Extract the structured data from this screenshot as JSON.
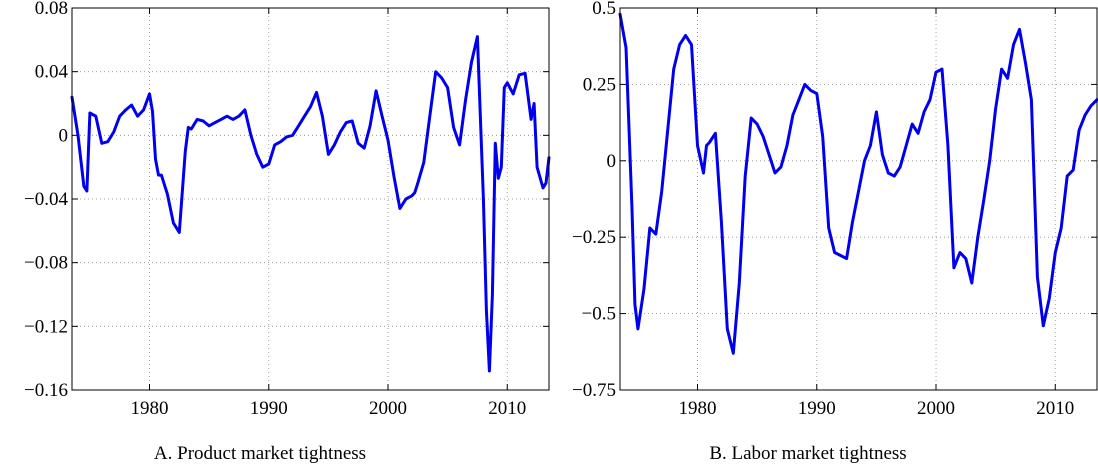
{
  "chart_data": [
    {
      "type": "line",
      "title": "A. Product market tightness",
      "xlim": [
        1973.5,
        2013.5
      ],
      "ylim": [
        -0.16,
        0.08
      ],
      "x_ticks": [
        1980,
        1990,
        2000,
        2010
      ],
      "x_tick_labels": [
        "1980",
        "1990",
        "2000",
        "2010"
      ],
      "y_ticks": [
        0.08,
        0.04,
        0,
        -0.04,
        -0.08,
        -0.12,
        -0.16
      ],
      "y_tick_labels": [
        "0.08",
        "0.04",
        "0",
        "−0.04",
        "−0.08",
        "−0.12",
        "−0.16"
      ],
      "grid": true,
      "series": [
        {
          "color": "#0000ee",
          "x": [
            1973.5,
            1974.0,
            1974.5,
            1974.75,
            1975.0,
            1975.5,
            1976.0,
            1976.5,
            1977.0,
            1977.5,
            1978.0,
            1978.5,
            1979.0,
            1979.5,
            1980.0,
            1980.25,
            1980.5,
            1980.75,
            1981.0,
            1981.5,
            1982.0,
            1982.5,
            1983.0,
            1983.25,
            1983.5,
            1984.0,
            1984.5,
            1985.0,
            1985.5,
            1986.0,
            1986.5,
            1987.0,
            1987.5,
            1988.0,
            1988.5,
            1989.0,
            1989.5,
            1990.0,
            1990.5,
            1991.0,
            1991.5,
            1992.0,
            1992.5,
            1993.0,
            1993.5,
            1994.0,
            1994.5,
            1995.0,
            1995.5,
            1996.0,
            1996.5,
            1997.0,
            1997.5,
            1998.0,
            1998.5,
            1999.0,
            1999.5,
            2000.0,
            2000.5,
            2001.0,
            2001.5,
            2002.0,
            2002.25,
            2002.5,
            2003.0,
            2003.5,
            2004.0,
            2004.5,
            2005.0,
            2005.5,
            2006.0,
            2006.5,
            2007.0,
            2007.5,
            2008.0,
            2008.25,
            2008.5,
            2008.75,
            2009.0,
            2009.25,
            2009.5,
            2009.75,
            2010.0,
            2010.5,
            2010.75,
            2011.0,
            2011.5,
            2012.0,
            2012.25,
            2012.5,
            2013.0,
            2013.25,
            2013.5
          ],
          "y": [
            0.024,
            0.0,
            -0.032,
            -0.035,
            0.014,
            0.012,
            -0.005,
            -0.004,
            0.002,
            0.012,
            0.016,
            0.019,
            0.012,
            0.016,
            0.026,
            0.015,
            -0.015,
            -0.025,
            -0.025,
            -0.037,
            -0.055,
            -0.061,
            -0.01,
            0.005,
            0.004,
            0.01,
            0.009,
            0.006,
            0.008,
            0.01,
            0.012,
            0.01,
            0.012,
            0.016,
            0.0,
            -0.012,
            -0.02,
            -0.018,
            -0.006,
            -0.004,
            -0.001,
            0.0,
            0.006,
            0.012,
            0.018,
            0.027,
            0.012,
            -0.012,
            -0.006,
            0.002,
            0.008,
            0.009,
            -0.005,
            -0.008,
            0.006,
            0.028,
            0.012,
            -0.003,
            -0.026,
            -0.046,
            -0.04,
            -0.038,
            -0.036,
            -0.03,
            -0.017,
            0.012,
            0.04,
            0.036,
            0.03,
            0.005,
            -0.006,
            0.022,
            0.046,
            0.062,
            -0.04,
            -0.11,
            -0.148,
            -0.1,
            -0.005,
            -0.027,
            -0.02,
            0.03,
            0.033,
            0.026,
            0.032,
            0.038,
            0.039,
            0.01,
            0.02,
            -0.02,
            -0.033,
            -0.03,
            -0.014
          ]
        }
      ]
    },
    {
      "type": "line",
      "title": "B. Labor market tightness",
      "xlim": [
        1973.5,
        2013.5
      ],
      "ylim": [
        -0.75,
        0.5
      ],
      "x_ticks": [
        1980,
        1990,
        2000,
        2010
      ],
      "x_tick_labels": [
        "1980",
        "1990",
        "2000",
        "2010"
      ],
      "y_ticks": [
        0.5,
        0.25,
        0,
        -0.25,
        -0.5,
        -0.75
      ],
      "y_tick_labels": [
        "0.5",
        "0.25",
        "0",
        "−0.25",
        "−0.5",
        "−0.75"
      ],
      "grid": true,
      "series": [
        {
          "color": "#0000ee",
          "x": [
            1973.5,
            1974.0,
            1974.5,
            1974.75,
            1975.0,
            1975.5,
            1976.0,
            1976.5,
            1977.0,
            1977.5,
            1978.0,
            1978.5,
            1979.0,
            1979.5,
            1980.0,
            1980.5,
            1980.75,
            1981.0,
            1981.5,
            1982.0,
            1982.5,
            1983.0,
            1983.5,
            1984.0,
            1984.5,
            1985.0,
            1985.5,
            1986.0,
            1986.5,
            1987.0,
            1987.5,
            1988.0,
            1988.5,
            1989.0,
            1989.5,
            1990.0,
            1990.5,
            1991.0,
            1991.5,
            1992.0,
            1992.5,
            1993.0,
            1993.5,
            1994.0,
            1994.5,
            1995.0,
            1995.5,
            1996.0,
            1996.5,
            1997.0,
            1997.5,
            1998.0,
            1998.5,
            1999.0,
            1999.5,
            2000.0,
            2000.5,
            2001.0,
            2001.5,
            2002.0,
            2002.5,
            2003.0,
            2003.5,
            2004.0,
            2004.5,
            2005.0,
            2005.5,
            2006.0,
            2006.5,
            2007.0,
            2007.5,
            2008.0,
            2008.5,
            2009.0,
            2009.5,
            2010.0,
            2010.5,
            2011.0,
            2011.5,
            2012.0,
            2012.5,
            2013.0,
            2013.5
          ],
          "y": [
            0.48,
            0.37,
            -0.15,
            -0.47,
            -0.55,
            -0.42,
            -0.22,
            -0.24,
            -0.1,
            0.1,
            0.3,
            0.38,
            0.41,
            0.38,
            0.05,
            -0.04,
            0.05,
            0.06,
            0.09,
            -0.2,
            -0.55,
            -0.63,
            -0.4,
            -0.05,
            0.14,
            0.12,
            0.08,
            0.02,
            -0.04,
            -0.02,
            0.05,
            0.15,
            0.2,
            0.25,
            0.23,
            0.22,
            0.08,
            -0.22,
            -0.3,
            -0.31,
            -0.32,
            -0.2,
            -0.1,
            0.0,
            0.05,
            0.16,
            0.02,
            -0.04,
            -0.05,
            -0.02,
            0.05,
            0.12,
            0.09,
            0.16,
            0.2,
            0.29,
            0.3,
            0.05,
            -0.35,
            -0.3,
            -0.32,
            -0.4,
            -0.25,
            -0.13,
            0.0,
            0.17,
            0.3,
            0.27,
            0.38,
            0.43,
            0.32,
            0.2,
            -0.38,
            -0.54,
            -0.45,
            -0.3,
            -0.22,
            -0.05,
            -0.03,
            0.1,
            0.15,
            0.18,
            0.2
          ]
        }
      ]
    }
  ]
}
